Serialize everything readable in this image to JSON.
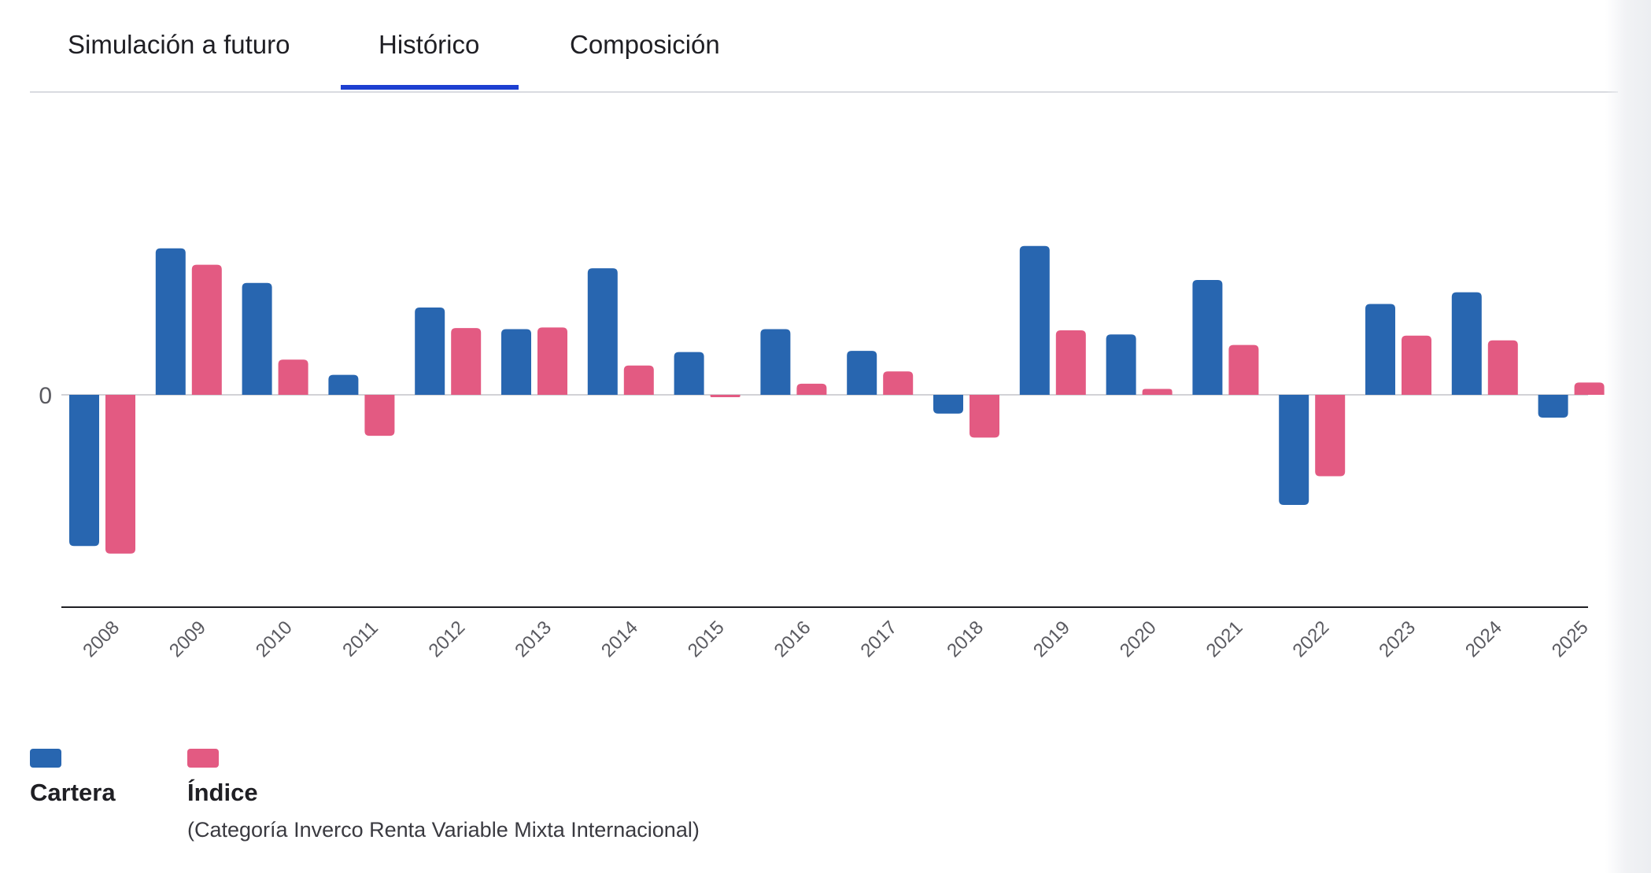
{
  "tabs": [
    {
      "label": "Simulación a futuro",
      "active": false
    },
    {
      "label": "Histórico",
      "active": true
    },
    {
      "label": "Composición",
      "active": false
    }
  ],
  "colors": {
    "cartera": "#2866b0",
    "indice": "#e35a82",
    "active_tab": "#1d3fd1",
    "axis": "#1f1f24",
    "zero_line": "#c4c4c8",
    "tick_text": "#5a5a60"
  },
  "chart_data": {
    "type": "bar",
    "categories": [
      "2008",
      "2009",
      "2010",
      "2011",
      "2012",
      "2013",
      "2014",
      "2015",
      "2016",
      "2017",
      "2018",
      "2019",
      "2020",
      "2021",
      "2022",
      "2023",
      "2024",
      "2025"
    ],
    "series": [
      {
        "name": "Cartera",
        "values": [
          -25.8,
          25.0,
          19.1,
          3.4,
          14.9,
          11.2,
          21.6,
          7.3,
          11.2,
          7.5,
          -3.2,
          25.4,
          10.3,
          19.6,
          -18.8,
          15.5,
          17.5,
          -3.9
        ]
      },
      {
        "name": "Índice",
        "values": [
          -27.1,
          22.2,
          6.0,
          -7.0,
          11.4,
          11.5,
          5.0,
          -0.4,
          1.9,
          4.0,
          -7.3,
          11.0,
          1.0,
          8.5,
          -13.9,
          10.1,
          9.3,
          2.1
        ]
      }
    ],
    "y_tick_labels": [
      "0"
    ],
    "ylim": [
      -36,
      45
    ],
    "grid": false,
    "legend": {
      "placement": "bottom-left",
      "entries": [
        {
          "label": "Cartera",
          "note": ""
        },
        {
          "label": "Índice",
          "note": "(Categoría Inverco Renta Variable Mixta Internacional)"
        }
      ]
    }
  }
}
